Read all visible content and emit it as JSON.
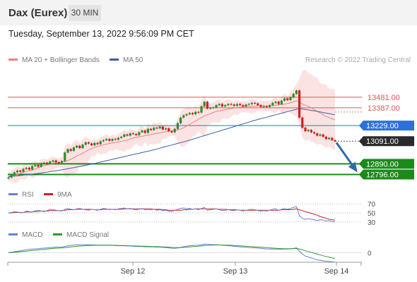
{
  "header": {
    "title": "Dax (Eurex)",
    "interval": "30 MIN"
  },
  "timestamp": "Tuesday, September 13, 2022 9:56:09 PM CET",
  "legend": {
    "ma20_label": "MA 20 + Bollinger Bands",
    "ma50_label": "MA 50",
    "credit": "Research © 2022 Trading Central"
  },
  "rsi_legend": {
    "rsi_label": "RSI",
    "ma_label": "9MA"
  },
  "macd_legend": {
    "macd_label": "MACD",
    "signal_label": "MACD Signal"
  },
  "colors": {
    "up": "#2e8b2e",
    "down": "#d11f1f",
    "ma20": "#f08080",
    "ma50": "#3b5ea8",
    "resistance": "#e05555",
    "pivot": "#2f6fdc",
    "support": "#1a8a1a",
    "macd": "#6a7fd0",
    "signal": "#2e9a2e",
    "rsi": "#6a7fd0",
    "rsi_ma": "#cc2020"
  },
  "chart_data": [
    {
      "type": "candlestick",
      "title": "Dax (Eurex) 30 MIN",
      "x_ticks": [
        "Sep 12",
        "Sep 13",
        "Sep 14"
      ],
      "ylim": [
        12730,
        13730
      ],
      "levels": [
        {
          "label": "13481.00",
          "value": 13481,
          "kind": "resistance"
        },
        {
          "label": "13387.00",
          "value": 13387,
          "kind": "resistance"
        },
        {
          "label": "13229.00",
          "value": 13229,
          "kind": "pivot"
        },
        {
          "label": "13091.00",
          "value": 13091,
          "kind": "last"
        },
        {
          "label": "12890.00",
          "value": 12890,
          "kind": "support"
        },
        {
          "label": "12796.00",
          "value": 12796,
          "kind": "support"
        }
      ],
      "close": [
        12770,
        12790,
        12815,
        12830,
        12820,
        12845,
        12855,
        12840,
        12870,
        12880,
        12865,
        12895,
        12900,
        12890,
        12910,
        12920,
        12905,
        12900,
        12915,
        12990,
        13020,
        13005,
        13035,
        13050,
        13030,
        13060,
        13080,
        13070,
        13055,
        13075,
        13065,
        13090,
        13100,
        13110,
        13095,
        13110,
        13105,
        13120,
        13130,
        13150,
        13140,
        13160,
        13155,
        13145,
        13170,
        13185,
        13165,
        13200,
        13190,
        13210,
        13205,
        13220,
        13195,
        13205,
        13180,
        13170,
        13200,
        13250,
        13300,
        13320,
        13330,
        13340,
        13330,
        13350,
        13345,
        13400,
        13440,
        13380,
        13385,
        13390,
        13410,
        13420,
        13400,
        13410,
        13420,
        13415,
        13405,
        13420,
        13410,
        13400,
        13415,
        13420,
        13430,
        13425,
        13410,
        13395,
        13400,
        13395,
        13410,
        13430,
        13440,
        13420,
        13450,
        13470,
        13455,
        13480,
        13510,
        13540,
        13300,
        13210,
        13180,
        13190,
        13170,
        13160,
        13140,
        13150,
        13130,
        13110,
        13120,
        13100,
        13091
      ],
      "series": [
        {
          "name": "MA 20",
          "values": [
            12780,
            12784,
            12788,
            12795,
            12805,
            12815,
            12825,
            12830,
            12835,
            12845,
            12855,
            12865,
            12875,
            12880,
            12885,
            12895,
            12900,
            12900,
            12905,
            12910,
            12920,
            12930,
            12945,
            12960,
            12970,
            12985,
            13000,
            13015,
            13025,
            13035,
            13045,
            13050,
            13060,
            13065,
            13070,
            13075,
            13080,
            13085,
            13090,
            13095,
            13100,
            13110,
            13120,
            13125,
            13130,
            13135,
            13140,
            13145,
            13150,
            13155,
            13160,
            13165,
            13170,
            13175,
            13180,
            13183,
            13185,
            13190,
            13200,
            13210,
            13225,
            13240,
            13255,
            13270,
            13285,
            13300,
            13315,
            13325,
            13335,
            13345,
            13355,
            13360,
            13365,
            13370,
            13375,
            13380,
            13385,
            13390,
            13392,
            13395,
            13397,
            13400,
            13400,
            13402,
            13405,
            13405,
            13405,
            13402,
            13405,
            13405,
            13410,
            13412,
            13415,
            13420,
            13425,
            13430,
            13440,
            13450,
            13440,
            13420,
            13410,
            13400,
            13385,
            13370,
            13355,
            13340,
            13325,
            13310,
            13300,
            13290,
            13280
          ]
        },
        {
          "name": "MA 50",
          "values": [
            12775,
            12778,
            12781,
            12784,
            12787,
            12790,
            12793,
            12796,
            12799,
            12802,
            12805,
            12809,
            12813,
            12817,
            12821,
            12825,
            12829,
            12833,
            12837,
            12842,
            12847,
            12852,
            12857,
            12862,
            12867,
            12872,
            12877,
            12882,
            12888,
            12894,
            12900,
            12906,
            12912,
            12918,
            12924,
            12930,
            12936,
            12942,
            12948,
            12954,
            12960,
            12966,
            12972,
            12978,
            12984,
            12990,
            12996,
            13002,
            13008,
            13015,
            13022,
            13029,
            13036,
            13043,
            13050,
            13057,
            13064,
            13071,
            13078,
            13085,
            13092,
            13100,
            13108,
            13116,
            13124,
            13132,
            13140,
            13148,
            13156,
            13164,
            13172,
            13180,
            13188,
            13196,
            13204,
            13212,
            13220,
            13228,
            13236,
            13244,
            13252,
            13260,
            13268,
            13276,
            13283,
            13290,
            13297,
            13304,
            13311,
            13318,
            13325,
            13332,
            13339,
            13346,
            13353,
            13360,
            13367,
            13374,
            13378,
            13376,
            13372,
            13368,
            13364,
            13360,
            13355,
            13350,
            13345,
            13340,
            13335,
            13330,
            13325
          ]
        }
      ]
    },
    {
      "type": "line",
      "title": "RSI",
      "ylim": [
        25,
        75
      ],
      "y_ticks": [
        "70",
        "50",
        "30"
      ],
      "series": [
        {
          "name": "RSI",
          "values": [
            50,
            51,
            53,
            52,
            50,
            51,
            54,
            53,
            52,
            55,
            56,
            54,
            53,
            55,
            58,
            57,
            56,
            55,
            54,
            58,
            60,
            58,
            57,
            59,
            60,
            58,
            57,
            56,
            58,
            57,
            56,
            58,
            60,
            59,
            57,
            58,
            57,
            59,
            60,
            61,
            59,
            60,
            58,
            57,
            58,
            60,
            57,
            58,
            57,
            58,
            56,
            57,
            55,
            56,
            54,
            53,
            56,
            58,
            60,
            61,
            59,
            60,
            58,
            59,
            57,
            60,
            62,
            56,
            57,
            58,
            59,
            57,
            55,
            56,
            57,
            56,
            55,
            57,
            56,
            54,
            56,
            57,
            58,
            57,
            55,
            54,
            55,
            54,
            56,
            58,
            59,
            56,
            58,
            60,
            58,
            60,
            62,
            64,
            44,
            38,
            36,
            37,
            36,
            35,
            33,
            35,
            34,
            32,
            33,
            31,
            30
          ]
        },
        {
          "name": "9MA",
          "values": [
            50,
            50,
            51,
            51,
            51,
            51,
            52,
            52,
            52,
            53,
            53,
            54,
            54,
            54,
            55,
            55,
            55,
            55,
            55,
            56,
            57,
            57,
            57,
            58,
            58,
            58,
            58,
            58,
            58,
            57,
            57,
            57,
            58,
            58,
            58,
            58,
            58,
            58,
            58,
            59,
            59,
            59,
            59,
            59,
            59,
            59,
            59,
            59,
            59,
            58,
            58,
            58,
            57,
            57,
            56,
            56,
            56,
            56,
            56,
            57,
            57,
            58,
            58,
            59,
            59,
            59,
            59,
            59,
            59,
            59,
            59,
            58,
            58,
            58,
            57,
            57,
            57,
            57,
            56,
            56,
            56,
            56,
            56,
            56,
            56,
            56,
            56,
            56,
            56,
            56,
            56,
            56,
            57,
            57,
            57,
            57,
            58,
            59,
            57,
            55,
            53,
            51,
            49,
            47,
            45,
            42,
            40,
            38,
            36,
            35,
            34
          ]
        }
      ]
    },
    {
      "type": "line",
      "title": "MACD",
      "ylim": [
        -10,
        15
      ],
      "y_ticks": [
        "0"
      ],
      "series": [
        {
          "name": "MACD",
          "values": [
            0,
            0.5,
            1,
            1.5,
            2,
            2.5,
            3,
            3.5,
            3.8,
            4,
            4.2,
            4.5,
            4.8,
            5,
            5.3,
            5.6,
            5.8,
            5.8,
            5.9,
            6.5,
            7.2,
            7.6,
            8,
            8.3,
            8.2,
            8.3,
            8.4,
            8.3,
            8.1,
            8.1,
            7.9,
            7.9,
            7.9,
            7.9,
            7.7,
            7.6,
            7.4,
            7.3,
            7.2,
            7.2,
            7,
            7,
            6.8,
            6.5,
            6.4,
            6.4,
            6.1,
            6.2,
            6,
            6,
            5.8,
            5.8,
            5.5,
            5.3,
            5,
            4.6,
            4.5,
            4.9,
            5.6,
            6.2,
            6.8,
            7.3,
            7.5,
            7.7,
            7.8,
            8.3,
            9,
            8.8,
            8.6,
            8.4,
            8.3,
            8.1,
            7.8,
            7.5,
            7.3,
            7,
            6.6,
            6.4,
            6.1,
            5.8,
            5.6,
            5.4,
            5.3,
            5.1,
            4.8,
            4.5,
            4.2,
            3.9,
            3.8,
            3.8,
            3.8,
            3.5,
            3.6,
            3.8,
            3.8,
            4,
            4.4,
            5,
            1.5,
            -1.5,
            -3.5,
            -4.5,
            -5.5,
            -6.5,
            -7.5,
            -8,
            -8.5,
            -9,
            -9.2,
            -9.5,
            -9.8
          ]
        },
        {
          "name": "MACD Signal",
          "values": [
            0,
            0.2,
            0.4,
            0.7,
            1,
            1.3,
            1.6,
            2,
            2.3,
            2.6,
            2.9,
            3.2,
            3.5,
            3.8,
            4.1,
            4.4,
            4.6,
            4.8,
            5,
            5.3,
            5.6,
            6,
            6.3,
            6.6,
            6.9,
            7.1,
            7.3,
            7.5,
            7.6,
            7.7,
            7.7,
            7.8,
            7.8,
            7.8,
            7.8,
            7.7,
            7.7,
            7.6,
            7.5,
            7.4,
            7.3,
            7.2,
            7.1,
            7,
            6.9,
            6.8,
            6.7,
            6.6,
            6.5,
            6.4,
            6.3,
            6.2,
            6,
            5.9,
            5.7,
            5.5,
            5.4,
            5.3,
            5.4,
            5.5,
            5.7,
            6,
            6.3,
            6.5,
            6.8,
            7.1,
            7.4,
            7.6,
            7.8,
            7.9,
            8,
            8,
            8,
            7.9,
            7.8,
            7.7,
            7.5,
            7.3,
            7.1,
            6.9,
            6.7,
            6.5,
            6.3,
            6.1,
            5.9,
            5.7,
            5.5,
            5.2,
            5,
            4.8,
            4.6,
            4.4,
            4.3,
            4.2,
            4.1,
            4.1,
            4.2,
            4.4,
            3.9,
            3,
            2,
            1.2,
            0.3,
            -0.6,
            -1.5,
            -2.4,
            -3.2,
            -4,
            -4.7,
            -5.4,
            -6
          ]
        }
      ]
    }
  ]
}
